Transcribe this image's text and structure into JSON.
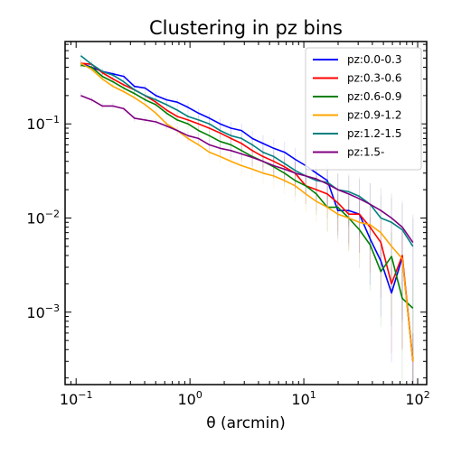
{
  "chart_data": {
    "type": "line",
    "title": "Clustering in pz bins",
    "xlabel": "θ (arcmin)",
    "ylabel": "",
    "xscale": "log",
    "yscale": "log",
    "xlim": [
      0.08,
      120
    ],
    "ylim": [
      0.00017,
      0.75
    ],
    "xticks": [
      {
        "value": 0.1,
        "base": "10",
        "exp": "−1"
      },
      {
        "value": 1,
        "base": "10",
        "exp": "0"
      },
      {
        "value": 10,
        "base": "10",
        "exp": "1"
      },
      {
        "value": 100,
        "base": "10",
        "exp": "2"
      }
    ],
    "yticks": [
      {
        "value": 0.001,
        "base": "10",
        "exp": "−3"
      },
      {
        "value": 0.01,
        "base": "10",
        "exp": "−2"
      },
      {
        "value": 0.1,
        "base": "10",
        "exp": "−1"
      }
    ],
    "grid": false,
    "legend_position": "top-right",
    "x": [
      0.11,
      0.137,
      0.17,
      0.211,
      0.262,
      0.325,
      0.404,
      0.502,
      0.623,
      0.774,
      0.961,
      1.19,
      1.48,
      1.84,
      2.29,
      2.84,
      3.53,
      4.38,
      5.44,
      6.76,
      8.39,
      10.4,
      12.9,
      16.1,
      19.9,
      24.8,
      30.8,
      38.2,
      47.5,
      58.9,
      73.2,
      90.9
    ],
    "series": [
      {
        "name": "pz:0.0-0.3",
        "color": "#0000ff",
        "values": [
          0.44,
          0.4,
          0.36,
          0.34,
          0.32,
          0.25,
          0.24,
          0.2,
          0.18,
          0.17,
          0.15,
          0.13,
          0.115,
          0.1,
          0.09,
          0.085,
          0.07,
          0.062,
          0.055,
          0.05,
          0.042,
          0.036,
          0.03,
          0.025,
          0.012,
          0.012,
          0.011,
          0.006,
          0.0035,
          0.0016,
          0.0038,
          0.0003
        ]
      },
      {
        "name": "pz:0.3-0.6",
        "color": "#ff0000",
        "values": [
          0.44,
          0.43,
          0.35,
          0.3,
          0.26,
          0.23,
          0.2,
          0.17,
          0.14,
          0.12,
          0.11,
          0.1,
          0.09,
          0.08,
          0.07,
          0.062,
          0.052,
          0.045,
          0.04,
          0.035,
          0.03,
          0.022,
          0.02,
          0.018,
          0.0145,
          0.011,
          0.011,
          0.008,
          0.0055,
          0.002,
          0.004,
          0.0003
        ]
      },
      {
        "name": "pz:0.6-0.9",
        "color": "#008000",
        "values": [
          0.42,
          0.4,
          0.32,
          0.28,
          0.24,
          0.21,
          0.18,
          0.16,
          0.13,
          0.11,
          0.1,
          0.085,
          0.075,
          0.065,
          0.06,
          0.052,
          0.045,
          0.04,
          0.035,
          0.03,
          0.025,
          0.022,
          0.018,
          0.013,
          0.013,
          0.01,
          0.0075,
          0.0052,
          0.0027,
          0.0039,
          0.0014,
          0.0011
        ]
      },
      {
        "name": "pz:0.9-1.2",
        "color": "#ffa500",
        "values": [
          0.44,
          0.38,
          0.3,
          0.25,
          0.22,
          0.19,
          0.16,
          0.13,
          0.1,
          0.085,
          0.07,
          0.06,
          0.05,
          0.045,
          0.04,
          0.036,
          0.033,
          0.03,
          0.028,
          0.025,
          0.022,
          0.018,
          0.015,
          0.013,
          0.011,
          0.01,
          0.009,
          0.0085,
          0.007,
          0.005,
          0.0037,
          0.0003
        ]
      },
      {
        "name": "pz:1.2-1.5",
        "color": "#008080",
        "values": [
          0.53,
          0.43,
          0.36,
          0.33,
          0.28,
          0.23,
          0.2,
          0.18,
          0.16,
          0.14,
          0.12,
          0.11,
          0.1,
          0.085,
          0.075,
          0.07,
          0.06,
          0.05,
          0.045,
          0.038,
          0.032,
          0.028,
          0.025,
          0.024,
          0.02,
          0.019,
          0.017,
          0.014,
          0.01,
          0.009,
          0.0075,
          0.005
        ]
      },
      {
        "name": "pz:1.5-",
        "color": "#800080",
        "values": [
          0.2,
          0.18,
          0.155,
          0.155,
          0.145,
          0.115,
          0.11,
          0.105,
          0.095,
          0.085,
          0.075,
          0.07,
          0.06,
          0.055,
          0.052,
          0.048,
          0.044,
          0.04,
          0.036,
          0.033,
          0.03,
          0.028,
          0.026,
          0.023,
          0.02,
          0.018,
          0.016,
          0.014,
          0.012,
          0.01,
          0.008,
          0.0055
        ]
      }
    ]
  }
}
